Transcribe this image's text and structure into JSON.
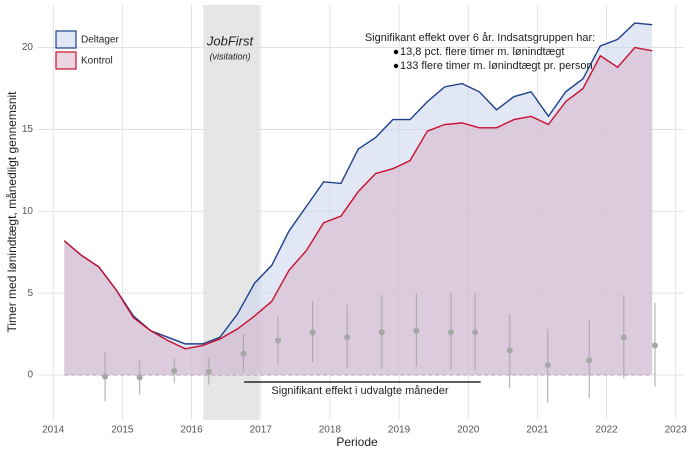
{
  "chart_data": {
    "type": "area-line",
    "x_label": "Periode",
    "y_label": "Timer med lønindtægt, månedligt gennemsnit",
    "xlim": [
      2013.78,
      2023.12
    ],
    "ylim": [
      -2.75,
      22.6
    ],
    "xticks": [
      2014,
      2015,
      2016,
      2017,
      2018,
      2019,
      2020,
      2021,
      2022,
      2023
    ],
    "yticks": [
      0,
      5,
      10,
      15,
      20
    ],
    "grid": true,
    "x": [
      2014.16,
      2014.41,
      2014.66,
      2014.91,
      2015.16,
      2015.41,
      2015.66,
      2015.91,
      2016.16,
      2016.41,
      2016.66,
      2016.91,
      2017.16,
      2017.41,
      2017.66,
      2017.91,
      2018.16,
      2018.41,
      2018.66,
      2018.91,
      2019.16,
      2019.41,
      2019.66,
      2019.91,
      2020.16,
      2020.41,
      2020.66,
      2020.91,
      2021.16,
      2021.41,
      2021.66,
      2021.91,
      2022.16,
      2022.41,
      2022.66
    ],
    "series": [
      {
        "name": "Deltager",
        "color": "#1d3f8c",
        "fill": "#c9d3ec",
        "values": [
          8.2,
          7.3,
          6.6,
          5.2,
          3.6,
          2.7,
          2.3,
          1.9,
          1.9,
          2.3,
          3.7,
          5.6,
          6.7,
          8.8,
          10.3,
          11.8,
          11.7,
          13.8,
          14.5,
          15.6,
          15.6,
          16.7,
          17.6,
          17.8,
          17.3,
          16.2,
          17.0,
          17.3,
          15.8,
          17.3,
          18.1,
          20.1,
          20.5,
          21.5,
          21.4
        ]
      },
      {
        "name": "Kontrol",
        "color": "#c8102e",
        "fill": "#d9b3c8",
        "values": [
          8.2,
          7.3,
          6.6,
          5.2,
          3.5,
          2.7,
          2.1,
          1.6,
          1.8,
          2.2,
          2.8,
          3.6,
          4.5,
          6.4,
          7.6,
          9.3,
          9.7,
          11.2,
          12.3,
          12.6,
          13.1,
          14.9,
          15.3,
          15.4,
          15.1,
          15.1,
          15.6,
          15.8,
          15.3,
          16.7,
          17.5,
          19.5,
          18.8,
          20.0,
          19.8
        ]
      }
    ],
    "estimates": {
      "color": "#a6a6a6",
      "x": [
        2014.75,
        2015.25,
        2015.75,
        2016.25,
        2016.75,
        2017.25,
        2017.75,
        2018.25,
        2018.75,
        2019.25,
        2019.75,
        2020.1,
        2020.6,
        2021.15,
        2021.75,
        2022.25,
        2022.7
      ],
      "values": [
        -0.1,
        -0.15,
        0.25,
        0.2,
        1.3,
        2.1,
        2.6,
        2.3,
        2.6,
        2.7,
        2.6,
        2.6,
        1.5,
        0.6,
        0.9,
        2.3,
        1.8
      ],
      "lower": [
        -1.6,
        -1.2,
        -0.5,
        -0.6,
        0.2,
        0.6,
        0.8,
        0.4,
        0.4,
        0.5,
        0.3,
        0.3,
        -0.8,
        -1.7,
        -1.4,
        -0.2,
        -0.7
      ],
      "upper": [
        1.4,
        0.9,
        1.0,
        1.0,
        2.5,
        3.6,
        4.5,
        4.3,
        4.9,
        5.0,
        5.0,
        5.0,
        3.7,
        2.8,
        3.4,
        4.9,
        4.4
      ]
    },
    "shaded_period": {
      "x": [
        2016.17,
        2016.98
      ],
      "title": "JobFirst",
      "subtitle": "(visitation)"
    },
    "significance_segment": {
      "x": [
        2016.76,
        2020.18
      ],
      "y": -0.43,
      "label": "Signifikant effekt i udvalgte måneder"
    },
    "annotation": {
      "title": "Signifikant effekt over 6 år. Indsatsgruppen har:",
      "bullets": [
        "13,8 pct. flere timer m. lønindtægt",
        "133 flere timer m. lønindtægt pr. person"
      ]
    }
  }
}
